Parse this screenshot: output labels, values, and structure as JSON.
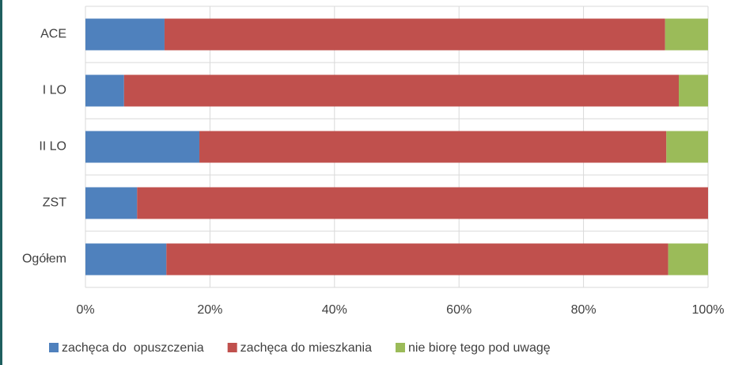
{
  "chart_data": {
    "type": "bar",
    "orientation": "horizontal",
    "stacked": true,
    "categories": [
      "ACE",
      "I LO",
      "II LO",
      "ZST",
      "Ogółem"
    ],
    "series": [
      {
        "name": "zachęca do  opuszczenia",
        "color": "#4f81bd",
        "values": [
          12.7,
          6.2,
          18.3,
          8.3,
          13.0
        ]
      },
      {
        "name": "zachęca do mieszkania",
        "color": "#c0504d",
        "values": [
          80.4,
          89.1,
          75.0,
          91.7,
          80.6
        ]
      },
      {
        "name": "nie biorę tego pod uwagę",
        "color": "#9bbb59",
        "values": [
          6.9,
          4.7,
          6.7,
          0,
          6.4
        ]
      }
    ],
    "xlim": [
      0,
      100
    ],
    "xticks": [
      {
        "value": 0,
        "label": "0%"
      },
      {
        "value": 20,
        "label": "20%"
      },
      {
        "value": 40,
        "label": "40%"
      },
      {
        "value": 60,
        "label": "60%"
      },
      {
        "value": 80,
        "label": "80%"
      },
      {
        "value": 100,
        "label": "100%"
      }
    ],
    "grid": true,
    "legend": "bottom"
  }
}
